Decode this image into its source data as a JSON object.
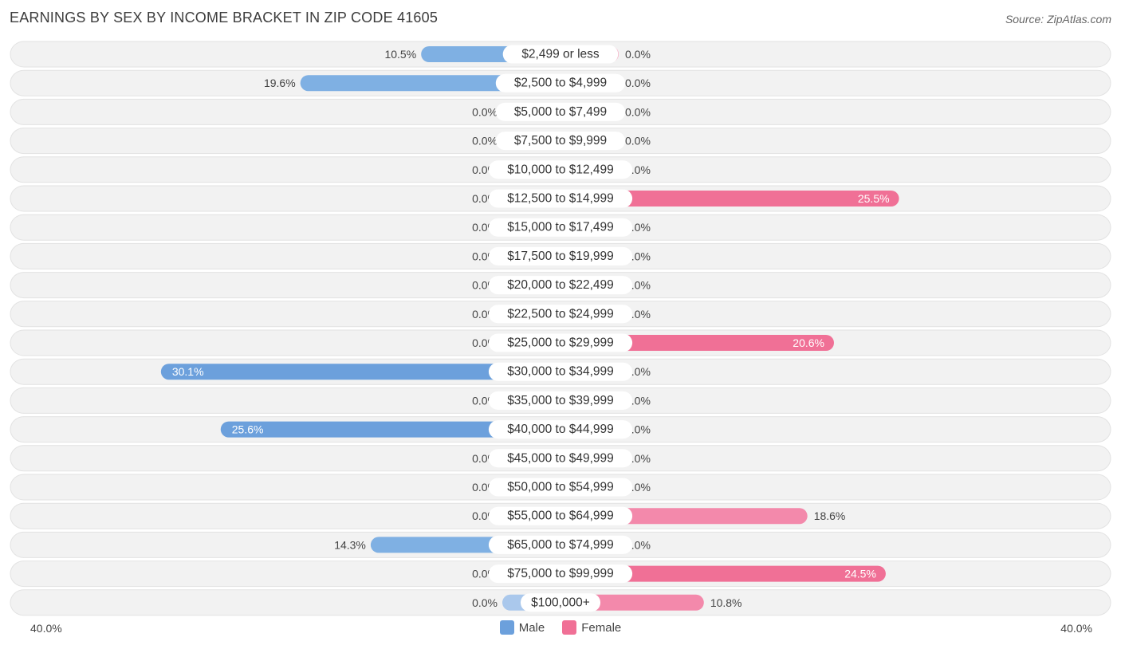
{
  "title": "EARNINGS BY SEX BY INCOME BRACKET IN ZIP CODE 41605",
  "source": "Source: ZipAtlas.com",
  "axis": {
    "left_label": "40.0%",
    "right_label": "40.0%"
  },
  "legend": [
    {
      "label": "Male",
      "color": "#6ca0dc"
    },
    {
      "label": "Female",
      "color": "#f07096"
    }
  ],
  "colors": {
    "male_strong": "#6ca0dc",
    "male_light": "#aac8ec",
    "female_strong": "#f07096",
    "female_light": "#f5a8c0",
    "row_bg": "#f2f2f2"
  },
  "chart_data": {
    "type": "bar",
    "orientation": "horizontal-diverging",
    "xlim": [
      -40,
      40
    ],
    "categories": [
      "$2,499 or less",
      "$2,500 to $4,999",
      "$5,000 to $7,499",
      "$7,500 to $9,999",
      "$10,000 to $12,499",
      "$12,500 to $14,999",
      "$15,000 to $17,499",
      "$17,500 to $19,999",
      "$20,000 to $22,499",
      "$22,500 to $24,999",
      "$25,000 to $29,999",
      "$30,000 to $34,999",
      "$35,000 to $39,999",
      "$40,000 to $44,999",
      "$45,000 to $49,999",
      "$50,000 to $54,999",
      "$55,000 to $64,999",
      "$65,000 to $74,999",
      "$75,000 to $99,999",
      "$100,000+"
    ],
    "series": [
      {
        "name": "Male",
        "values": [
          10.5,
          19.6,
          0.0,
          0.0,
          0.0,
          0.0,
          0.0,
          0.0,
          0.0,
          0.0,
          0.0,
          30.1,
          0.0,
          25.6,
          0.0,
          0.0,
          0.0,
          14.3,
          0.0,
          0.0
        ],
        "labels": [
          "10.5%",
          "19.6%",
          "0.0%",
          "0.0%",
          "0.0%",
          "0.0%",
          "0.0%",
          "0.0%",
          "0.0%",
          "0.0%",
          "0.0%",
          "30.1%",
          "0.0%",
          "25.6%",
          "0.0%",
          "0.0%",
          "0.0%",
          "14.3%",
          "0.0%",
          "0.0%"
        ]
      },
      {
        "name": "Female",
        "values": [
          0.0,
          0.0,
          0.0,
          0.0,
          0.0,
          25.5,
          0.0,
          0.0,
          0.0,
          0.0,
          20.6,
          0.0,
          0.0,
          0.0,
          0.0,
          0.0,
          18.6,
          0.0,
          24.5,
          10.8
        ],
        "labels": [
          "0.0%",
          "0.0%",
          "0.0%",
          "0.0%",
          "0.0%",
          "25.5%",
          "0.0%",
          "0.0%",
          "0.0%",
          "0.0%",
          "20.6%",
          "0.0%",
          "0.0%",
          "0.0%",
          "0.0%",
          "0.0%",
          "18.6%",
          "0.0%",
          "24.5%",
          "10.8%"
        ]
      }
    ]
  }
}
